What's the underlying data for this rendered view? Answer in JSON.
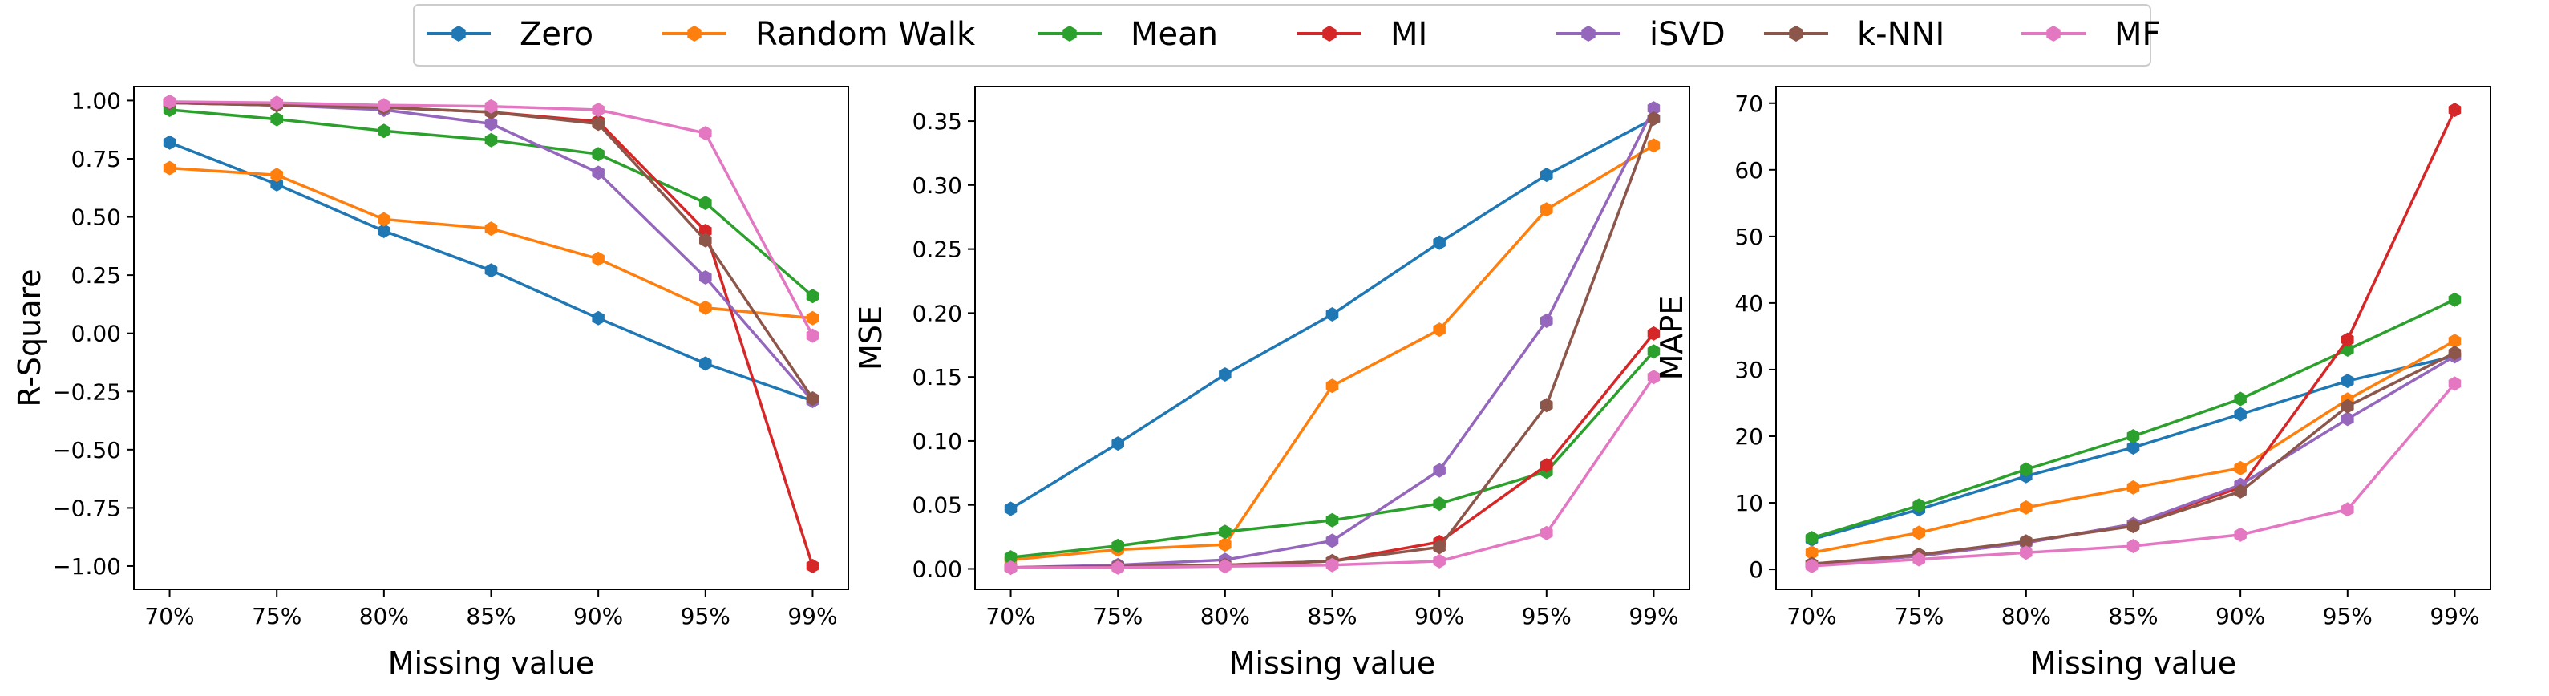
{
  "legend": [
    {
      "name": "Zero",
      "color": "#1f77b4"
    },
    {
      "name": "Random Walk",
      "color": "#ff7f0e"
    },
    {
      "name": "Mean",
      "color": "#2ca02c"
    },
    {
      "name": "MI",
      "color": "#d62728"
    },
    {
      "name": "iSVD",
      "color": "#9467bd"
    },
    {
      "name": "k-NNI",
      "color": "#8c564b"
    },
    {
      "name": "MF",
      "color": "#e377c2"
    }
  ],
  "chart_data": [
    {
      "type": "line",
      "xlabel": "Missing value",
      "ylabel": "R-Square",
      "categories": [
        "70%",
        "75%",
        "80%",
        "85%",
        "90%",
        "95%",
        "99%"
      ],
      "ylim": [
        -1.1,
        1.06
      ],
      "yticks": [
        1.0,
        0.75,
        0.5,
        0.25,
        0.0,
        -0.25,
        -0.5,
        -0.75,
        -1.0
      ],
      "ytick_labels": [
        "1.00",
        "0.75",
        "0.50",
        "0.25",
        "0.00",
        "−0.25",
        "−0.50",
        "−0.75",
        "−1.00"
      ],
      "series": [
        {
          "name": "Zero",
          "values": [
            0.82,
            0.64,
            0.44,
            0.27,
            0.065,
            -0.13,
            -0.29
          ]
        },
        {
          "name": "Random Walk",
          "values": [
            0.71,
            0.68,
            0.49,
            0.45,
            0.32,
            0.11,
            0.065
          ]
        },
        {
          "name": "Mean",
          "values": [
            0.96,
            0.92,
            0.87,
            0.83,
            0.77,
            0.56,
            0.16
          ]
        },
        {
          "name": "MI",
          "values": [
            0.99,
            0.98,
            0.97,
            0.95,
            0.91,
            0.44,
            -1.0
          ]
        },
        {
          "name": "iSVD",
          "values": [
            0.99,
            0.98,
            0.96,
            0.9,
            0.69,
            0.24,
            -0.29
          ]
        },
        {
          "name": "k-NNI",
          "values": [
            0.99,
            0.98,
            0.97,
            0.95,
            0.9,
            0.4,
            -0.28
          ]
        },
        {
          "name": "MF",
          "values": [
            0.995,
            0.99,
            0.98,
            0.975,
            0.96,
            0.86,
            -0.01
          ]
        }
      ]
    },
    {
      "type": "line",
      "xlabel": "Missing value",
      "ylabel": "MSE",
      "categories": [
        "70%",
        "75%",
        "80%",
        "85%",
        "90%",
        "95%",
        "99%"
      ],
      "ylim": [
        -0.016,
        0.377
      ],
      "yticks": [
        0.0,
        0.05,
        0.1,
        0.15,
        0.2,
        0.25,
        0.3,
        0.35
      ],
      "ytick_labels": [
        "0.00",
        "0.05",
        "0.10",
        "0.15",
        "0.20",
        "0.25",
        "0.30",
        "0.35"
      ],
      "series": [
        {
          "name": "Zero",
          "values": [
            0.047,
            0.098,
            0.152,
            0.199,
            0.255,
            0.308,
            0.352
          ]
        },
        {
          "name": "Random Walk",
          "values": [
            0.007,
            0.015,
            0.019,
            0.143,
            0.187,
            0.281,
            0.331
          ]
        },
        {
          "name": "Mean",
          "values": [
            0.009,
            0.018,
            0.029,
            0.038,
            0.051,
            0.076,
            0.17
          ]
        },
        {
          "name": "MI",
          "values": [
            0.001,
            0.002,
            0.003,
            0.006,
            0.021,
            0.081,
            0.184
          ]
        },
        {
          "name": "iSVD",
          "values": [
            0.001,
            0.003,
            0.007,
            0.022,
            0.077,
            0.194,
            0.36
          ]
        },
        {
          "name": "k-NNI",
          "values": [
            0.001,
            0.002,
            0.003,
            0.006,
            0.017,
            0.128,
            0.352
          ]
        },
        {
          "name": "MF",
          "values": [
            0.001,
            0.001,
            0.002,
            0.003,
            0.006,
            0.028,
            0.15
          ]
        }
      ]
    },
    {
      "type": "line",
      "xlabel": "Missing value",
      "ylabel": "MAPE",
      "categories": [
        "70%",
        "75%",
        "80%",
        "85%",
        "90%",
        "95%",
        "99%"
      ],
      "ylim": [
        -3.0,
        72.5
      ],
      "yticks": [
        0,
        10,
        20,
        30,
        40,
        50,
        60,
        70
      ],
      "ytick_labels": [
        "0",
        "10",
        "20",
        "30",
        "40",
        "50",
        "60",
        "70"
      ],
      "series": [
        {
          "name": "Zero",
          "values": [
            4.5,
            9.0,
            14.0,
            18.3,
            23.3,
            28.3,
            32.0
          ]
        },
        {
          "name": "Random Walk",
          "values": [
            2.5,
            5.5,
            9.3,
            12.3,
            15.2,
            25.5,
            34.3
          ]
        },
        {
          "name": "Mean",
          "values": [
            4.7,
            9.6,
            15.0,
            20.0,
            25.6,
            33.0,
            40.5
          ]
        },
        {
          "name": "MI",
          "values": [
            0.8,
            2.0,
            4.0,
            6.8,
            12.3,
            34.5,
            69.0
          ]
        },
        {
          "name": "iSVD",
          "values": [
            0.8,
            2.0,
            4.0,
            6.8,
            12.7,
            22.6,
            32.0
          ]
        },
        {
          "name": "k-NNI",
          "values": [
            0.8,
            2.2,
            4.2,
            6.5,
            11.7,
            24.5,
            32.5
          ]
        },
        {
          "name": "MF",
          "values": [
            0.5,
            1.5,
            2.5,
            3.5,
            5.2,
            9.0,
            27.9
          ]
        }
      ]
    }
  ]
}
